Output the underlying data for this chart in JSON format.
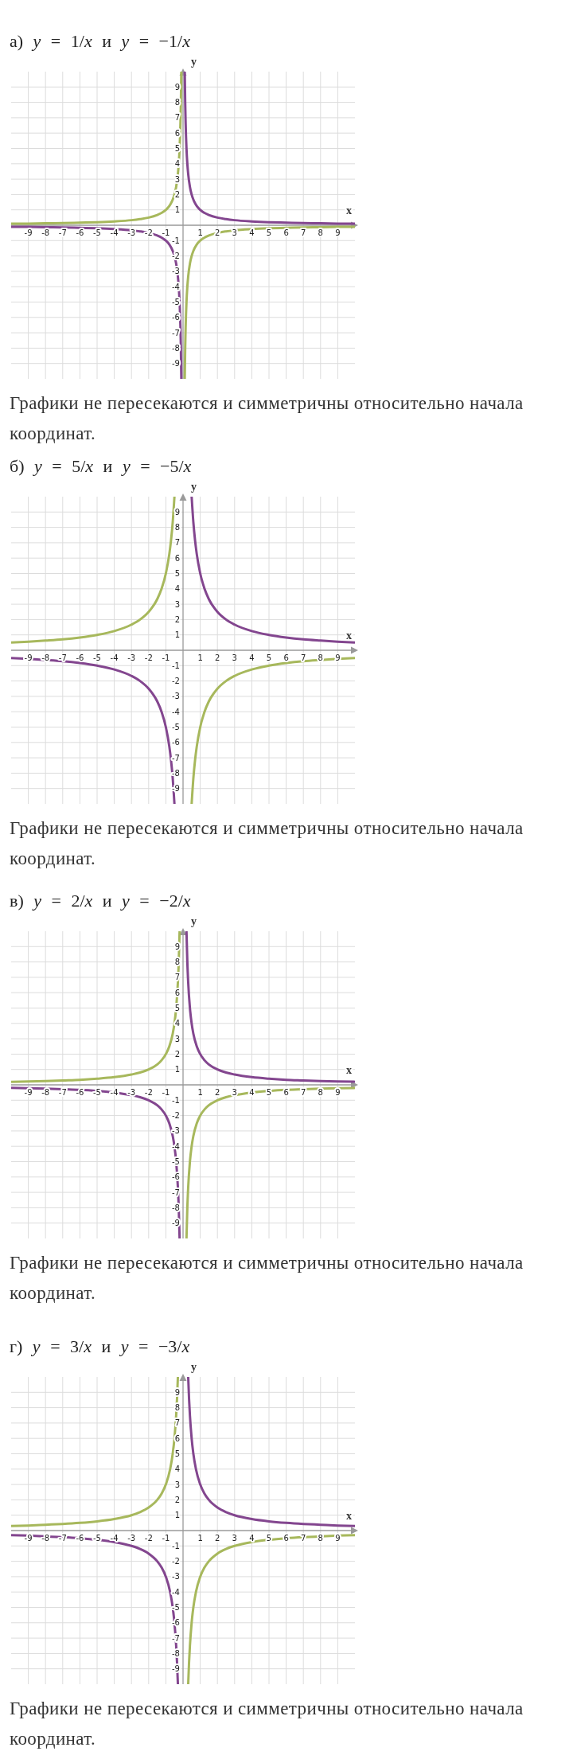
{
  "chart_data": [
    {
      "type": "line",
      "title": "а) y = 1/x и y = −1/x",
      "xlabel": "x",
      "ylabel": "y",
      "xlim": [
        -10,
        10
      ],
      "ylim": [
        -10,
        10
      ],
      "xticks": [
        -9,
        -8,
        -7,
        -6,
        -5,
        -4,
        -3,
        -2,
        -1,
        1,
        2,
        3,
        4,
        5,
        6,
        7,
        8,
        9
      ],
      "yticks": [
        -9,
        -8,
        -7,
        -6,
        -5,
        -4,
        -3,
        -2,
        -1,
        1,
        2,
        3,
        4,
        5,
        6,
        7,
        8,
        9
      ],
      "grid": true,
      "x": [
        -10,
        -9,
        -8,
        -7,
        -6,
        -5,
        -4,
        -3,
        -2.5,
        -2,
        -1.5,
        -1.25,
        -1,
        -0.8,
        -0.6,
        -0.5,
        -0.4,
        -0.3,
        -0.25,
        -0.2,
        -0.15,
        -0.125,
        -0.1,
        0,
        0.1,
        0.125,
        0.15,
        0.2,
        0.25,
        0.3,
        0.4,
        0.5,
        0.6,
        0.8,
        1,
        1.25,
        1.5,
        2,
        2.5,
        3,
        4,
        5,
        6,
        7,
        8,
        9,
        10
      ],
      "series": [
        {
          "color": "#83468f",
          "values": [
            -0.1,
            -0.11,
            -0.13,
            -0.14,
            -0.17,
            -0.2,
            -0.25,
            -0.33,
            -0.4,
            -0.5,
            -0.67,
            -0.8,
            -1,
            -1.25,
            -1.67,
            -2,
            -2.5,
            -3.33,
            -4,
            -5,
            -6.67,
            -8,
            -10,
            null,
            10,
            8,
            6.67,
            5,
            4,
            3.33,
            2.5,
            2,
            1.67,
            1.25,
            1,
            0.8,
            0.67,
            0.5,
            0.4,
            0.33,
            0.25,
            0.2,
            0.17,
            0.14,
            0.13,
            0.11,
            0.1
          ]
        },
        {
          "color": "#a7b85c",
          "values": [
            0.1,
            0.11,
            0.13,
            0.14,
            0.17,
            0.2,
            0.25,
            0.33,
            0.4,
            0.5,
            0.67,
            0.8,
            1,
            1.25,
            1.67,
            2,
            2.5,
            3.33,
            4,
            5,
            6.67,
            8,
            10,
            null,
            -10,
            -8,
            -6.67,
            -5,
            -4,
            -3.33,
            -2.5,
            -2,
            -1.67,
            -1.25,
            -1,
            -0.8,
            -0.67,
            -0.5,
            -0.4,
            -0.33,
            -0.25,
            -0.2,
            -0.17,
            -0.14,
            -0.13,
            -0.11,
            -0.1
          ]
        }
      ],
      "annotations": [
        "Графики не пересекаются и симметричны относительно начала координат."
      ]
    },
    {
      "type": "line",
      "title": "б) y = 5/x и y = −5/x",
      "xlabel": "x",
      "ylabel": "y",
      "xlim": [
        -10,
        10
      ],
      "ylim": [
        -10,
        10
      ],
      "xticks": [
        -9,
        -8,
        -7,
        -6,
        -5,
        -4,
        -3,
        -2,
        -1,
        1,
        2,
        3,
        4,
        5,
        6,
        7,
        8,
        9
      ],
      "yticks": [
        -9,
        -8,
        -7,
        -6,
        -5,
        -4,
        -3,
        -2,
        -1,
        1,
        2,
        3,
        4,
        5,
        6,
        7,
        8,
        9
      ],
      "grid": true,
      "x": [
        -10,
        -9,
        -8,
        -7,
        -6,
        -5,
        -4,
        -3,
        -2.5,
        -2,
        -1.5,
        -1.25,
        -1,
        -0.8,
        -0.7,
        -0.6,
        -0.5,
        0,
        0.5,
        0.6,
        0.7,
        0.8,
        1,
        1.25,
        1.5,
        2,
        2.5,
        3,
        4,
        5,
        6,
        7,
        8,
        9,
        10
      ],
      "series": [
        {
          "color": "#83468f",
          "values": [
            -0.5,
            -0.56,
            -0.63,
            -0.71,
            -0.83,
            -1,
            -1.25,
            -1.67,
            -2,
            -2.5,
            -3.33,
            -4,
            -5,
            -6.25,
            -7.14,
            -8.33,
            -10,
            null,
            10,
            8.33,
            7.14,
            6.25,
            5,
            4,
            3.33,
            2.5,
            2,
            1.67,
            1.25,
            1,
            0.83,
            0.71,
            0.63,
            0.56,
            0.5
          ]
        },
        {
          "color": "#a7b85c",
          "values": [
            0.5,
            0.56,
            0.63,
            0.71,
            0.83,
            1,
            1.25,
            1.67,
            2,
            2.5,
            3.33,
            4,
            5,
            6.25,
            7.14,
            8.33,
            10,
            null,
            -10,
            -8.33,
            -7.14,
            -6.25,
            -5,
            -4,
            -3.33,
            -2.5,
            -2,
            -1.67,
            -1.25,
            -1,
            -0.83,
            -0.71,
            -0.63,
            -0.56,
            -0.5
          ]
        }
      ],
      "annotations": [
        "Графики не пересекаются и симметричны относительно начала координат."
      ]
    },
    {
      "type": "line",
      "title": "в) y = 2/x и y = −2/x",
      "xlabel": "x",
      "ylabel": "y",
      "xlim": [
        -10,
        10
      ],
      "ylim": [
        -10,
        10
      ],
      "xticks": [
        -9,
        -8,
        -7,
        -6,
        -5,
        -4,
        -3,
        -2,
        -1,
        1,
        2,
        3,
        4,
        5,
        6,
        7,
        8,
        9
      ],
      "yticks": [
        -9,
        -8,
        -7,
        -6,
        -5,
        -4,
        -3,
        -2,
        -1,
        1,
        2,
        3,
        4,
        5,
        6,
        7,
        8,
        9
      ],
      "grid": true,
      "x": [
        -10,
        -9,
        -8,
        -7,
        -6,
        -5,
        -4,
        -3,
        -2.5,
        -2,
        -1.5,
        -1.25,
        -1,
        -0.8,
        -0.6,
        -0.5,
        -0.4,
        -0.3,
        -0.25,
        -0.2,
        0,
        0.2,
        0.25,
        0.3,
        0.4,
        0.5,
        0.6,
        0.8,
        1,
        1.25,
        1.5,
        2,
        2.5,
        3,
        4,
        5,
        6,
        7,
        8,
        9,
        10
      ],
      "series": [
        {
          "color": "#83468f",
          "values": [
            -0.2,
            -0.22,
            -0.25,
            -0.29,
            -0.33,
            -0.4,
            -0.5,
            -0.67,
            -0.8,
            -1,
            -1.33,
            -1.6,
            -2,
            -2.5,
            -3.33,
            -4,
            -5,
            -6.67,
            -8,
            -10,
            null,
            10,
            8,
            6.67,
            5,
            4,
            3.33,
            2.5,
            2,
            1.6,
            1.33,
            1,
            0.8,
            0.67,
            0.5,
            0.4,
            0.33,
            0.29,
            0.25,
            0.22,
            0.2
          ]
        },
        {
          "color": "#a7b85c",
          "values": [
            0.2,
            0.22,
            0.25,
            0.29,
            0.33,
            0.4,
            0.5,
            0.67,
            0.8,
            1,
            1.33,
            1.6,
            2,
            2.5,
            3.33,
            4,
            5,
            6.67,
            8,
            10,
            null,
            -10,
            -8,
            -6.67,
            -5,
            -4,
            -3.33,
            -2.5,
            -2,
            -1.6,
            -1.33,
            -1,
            -0.8,
            -0.67,
            -0.5,
            -0.4,
            -0.33,
            -0.29,
            -0.25,
            -0.22,
            -0.2
          ]
        }
      ],
      "annotations": [
        "Графики не пересекаются и симметричны относительно начала координат."
      ]
    },
    {
      "type": "line",
      "title": "г) y = 3/x и y = −3/x",
      "xlabel": "x",
      "ylabel": "y",
      "xlim": [
        -10,
        10
      ],
      "ylim": [
        -10,
        10
      ],
      "xticks": [
        -9,
        -8,
        -7,
        -6,
        -5,
        -4,
        -3,
        -2,
        -1,
        1,
        2,
        3,
        4,
        5,
        6,
        7,
        8,
        9
      ],
      "yticks": [
        -9,
        -8,
        -7,
        -6,
        -5,
        -4,
        -3,
        -2,
        -1,
        1,
        2,
        3,
        4,
        5,
        6,
        7,
        8,
        9
      ],
      "grid": true,
      "x": [
        -10,
        -9,
        -8,
        -7,
        -6,
        -5,
        -4,
        -3,
        -2.5,
        -2,
        -1.5,
        -1.25,
        -1,
        -0.75,
        -0.6,
        -0.5,
        -0.4,
        -0.35,
        -0.3,
        0,
        0.3,
        0.35,
        0.4,
        0.5,
        0.6,
        0.75,
        1,
        1.25,
        1.5,
        2,
        2.5,
        3,
        4,
        5,
        6,
        7,
        8,
        9,
        10
      ],
      "series": [
        {
          "color": "#83468f",
          "values": [
            -0.3,
            -0.33,
            -0.38,
            -0.43,
            -0.5,
            -0.6,
            -0.75,
            -1,
            -1.2,
            -1.5,
            -2,
            -2.4,
            -3,
            -4,
            -5,
            -6,
            -7.5,
            -8.57,
            -10,
            null,
            10,
            8.57,
            7.5,
            6,
            5,
            4,
            3,
            2.4,
            2,
            1.5,
            1.2,
            1,
            0.75,
            0.6,
            0.5,
            0.43,
            0.38,
            0.33,
            0.3
          ]
        },
        {
          "color": "#a7b85c",
          "values": [
            0.3,
            0.33,
            0.38,
            0.43,
            0.5,
            0.6,
            0.75,
            1,
            1.2,
            1.5,
            2,
            2.4,
            3,
            4,
            5,
            6,
            7.5,
            8.57,
            10,
            null,
            -10,
            -8.57,
            -7.5,
            -6,
            -5,
            -4,
            -3,
            -2.4,
            -2,
            -1.5,
            -1.2,
            -1,
            -0.75,
            -0.6,
            -0.5,
            -0.43,
            -0.38,
            -0.33,
            -0.3
          ]
        }
      ],
      "annotations": [
        "Графики не пересекаются и симметричны относительно начала координат."
      ]
    }
  ]
}
